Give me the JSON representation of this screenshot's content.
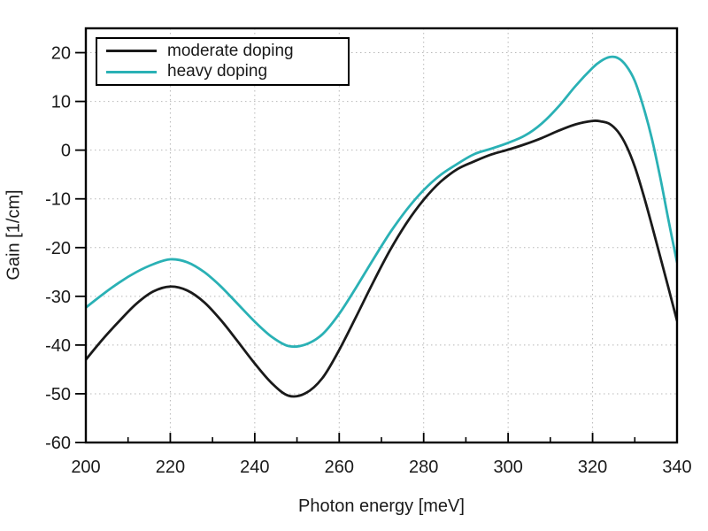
{
  "figure": {
    "background": "#ffffff",
    "text_color": "#1a1a1a",
    "grid_color": "#b8b8b8",
    "axis_color": "#000000"
  },
  "legend": {
    "position": "top-left",
    "entries": [
      {
        "label": "moderate doping",
        "color": "#1a1a1a"
      },
      {
        "label": "heavy doping",
        "color": "#2ab1b5"
      }
    ]
  },
  "chart_data": {
    "type": "line",
    "title": "",
    "xlabel": "Photon energy [meV]",
    "ylabel": "Gain [1/cm]",
    "xlim": [
      200,
      340
    ],
    "ylim": [
      -60,
      25
    ],
    "x_ticks": [
      200,
      220,
      240,
      260,
      280,
      300,
      320,
      340
    ],
    "x_minor_ticks": [
      210,
      230,
      250,
      270,
      290,
      310,
      330
    ],
    "y_ticks": [
      -60,
      -50,
      -40,
      -30,
      -20,
      -10,
      0,
      10,
      20
    ],
    "grid": "dotted",
    "legend_position": "upper-left",
    "x": [
      200,
      204,
      208,
      212,
      216,
      220,
      224,
      228,
      232,
      236,
      240,
      244,
      248,
      252,
      256,
      260,
      264,
      268,
      272,
      276,
      280,
      284,
      288,
      292,
      296,
      300,
      304,
      308,
      312,
      316,
      320,
      322,
      324,
      326,
      328,
      330,
      332,
      334,
      336,
      338,
      340
    ],
    "series": [
      {
        "name": "moderate doping",
        "color": "#1a1a1a",
        "values": [
          -43,
          -38.8,
          -35,
          -31.5,
          -29,
          -28,
          -28.8,
          -31.2,
          -34.9,
          -39.3,
          -43.8,
          -47.8,
          -50.4,
          -49.9,
          -46.8,
          -41,
          -34.2,
          -27.2,
          -20.6,
          -14.9,
          -10.2,
          -6.5,
          -3.9,
          -2.3,
          -0.9,
          0.1,
          1.2,
          2.5,
          4,
          5.3,
          6,
          5.9,
          5.4,
          3.8,
          0.9,
          -3.4,
          -9,
          -15.3,
          -21.8,
          -28.4,
          -35
        ]
      },
      {
        "name": "heavy doping",
        "color": "#2ab1b5",
        "values": [
          -32.3,
          -29.6,
          -27.1,
          -25,
          -23.4,
          -22.4,
          -23,
          -25,
          -28,
          -31.6,
          -35.2,
          -38.3,
          -40.2,
          -39.9,
          -37.8,
          -33.6,
          -28.2,
          -22.5,
          -17,
          -12.2,
          -8.2,
          -5.1,
          -2.8,
          -0.8,
          0.3,
          1.5,
          3,
          5.5,
          9,
          13.2,
          16.9,
          18.3,
          19.1,
          18.9,
          17.3,
          14.2,
          9,
          2.5,
          -5.5,
          -14.5,
          -23
        ]
      }
    ]
  }
}
